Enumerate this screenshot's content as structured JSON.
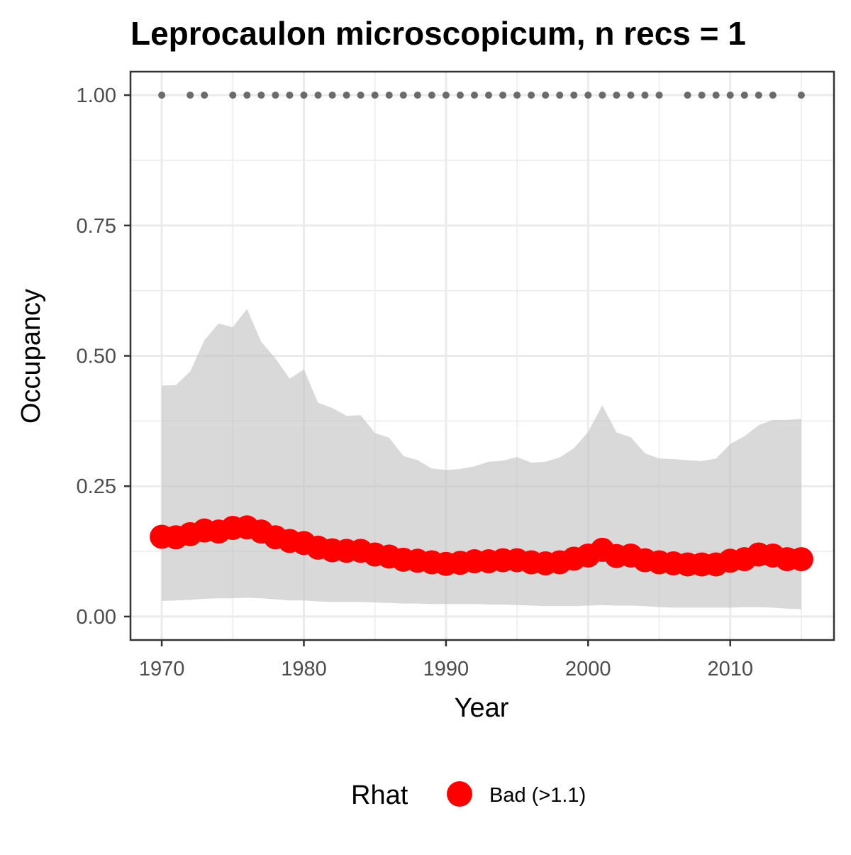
{
  "chart_data": {
    "type": "line",
    "title": "Leprocaulon microscopicum, n recs = 1",
    "xlabel": "Year",
    "ylabel": "Occupancy",
    "xlim": [
      1967.8,
      2017.3
    ],
    "ylim": [
      -0.045,
      1.045
    ],
    "x_ticks": [
      1970,
      1980,
      1990,
      2000,
      2010
    ],
    "x_tick_labels": [
      "1970",
      "1980",
      "1990",
      "2000",
      "2010"
    ],
    "y_ticks": [
      0,
      0.25,
      0.5,
      0.75,
      1.0
    ],
    "y_tick_labels": [
      "0.00",
      "0.25",
      "0.50",
      "0.75",
      "1.00"
    ],
    "grid": true,
    "legend": {
      "title": "Rhat",
      "position": "bottom",
      "entries": [
        {
          "label": "Bad (>1.1)",
          "color": "#ff0000"
        }
      ]
    },
    "colors": {
      "mean_points": "#ff0000",
      "ribbon": "#d6d6d6",
      "record_points": "#6b6b6b",
      "grid": "#ebebeb",
      "panel_border": "#333333"
    },
    "x": [
      1970,
      1971,
      1972,
      1973,
      1974,
      1975,
      1976,
      1977,
      1978,
      1979,
      1980,
      1981,
      1982,
      1983,
      1984,
      1985,
      1986,
      1987,
      1988,
      1989,
      1990,
      1991,
      1992,
      1993,
      1994,
      1995,
      1996,
      1997,
      1998,
      1999,
      2000,
      2001,
      2002,
      2003,
      2004,
      2005,
      2006,
      2007,
      2008,
      2009,
      2010,
      2011,
      2012,
      2013,
      2014,
      2015
    ],
    "series": [
      {
        "values": [
          0.153,
          0.152,
          0.158,
          0.165,
          0.163,
          0.17,
          0.171,
          0.163,
          0.152,
          0.145,
          0.141,
          0.132,
          0.127,
          0.126,
          0.126,
          0.119,
          0.115,
          0.109,
          0.107,
          0.104,
          0.101,
          0.103,
          0.106,
          0.106,
          0.108,
          0.108,
          0.104,
          0.102,
          0.104,
          0.111,
          0.117,
          0.128,
          0.116,
          0.117,
          0.108,
          0.104,
          0.102,
          0.1,
          0.1,
          0.1,
          0.107,
          0.11,
          0.119,
          0.117,
          0.11,
          0.11
        ]
      }
    ],
    "ribbon": {
      "upper": [
        0.443,
        0.444,
        0.47,
        0.53,
        0.562,
        0.555,
        0.59,
        0.527,
        0.495,
        0.456,
        0.474,
        0.41,
        0.4,
        0.385,
        0.386,
        0.352,
        0.343,
        0.308,
        0.3,
        0.284,
        0.281,
        0.283,
        0.288,
        0.297,
        0.299,
        0.306,
        0.295,
        0.297,
        0.305,
        0.323,
        0.354,
        0.405,
        0.353,
        0.344,
        0.313,
        0.303,
        0.302,
        0.3,
        0.298,
        0.303,
        0.331,
        0.346,
        0.367,
        0.377,
        0.377,
        0.379
      ],
      "lower": [
        0.03,
        0.031,
        0.032,
        0.034,
        0.035,
        0.035,
        0.036,
        0.035,
        0.033,
        0.031,
        0.031,
        0.029,
        0.028,
        0.028,
        0.028,
        0.027,
        0.026,
        0.025,
        0.025,
        0.024,
        0.024,
        0.024,
        0.024,
        0.023,
        0.023,
        0.022,
        0.021,
        0.02,
        0.02,
        0.02,
        0.021,
        0.022,
        0.021,
        0.021,
        0.02,
        0.018,
        0.017,
        0.017,
        0.017,
        0.017,
        0.017,
        0.018,
        0.018,
        0.017,
        0.015,
        0.014
      ]
    },
    "record_years": [
      1970,
      1972,
      1973,
      1975,
      1976,
      1977,
      1978,
      1979,
      1980,
      1981,
      1982,
      1983,
      1984,
      1985,
      1986,
      1987,
      1988,
      1989,
      1990,
      1991,
      1992,
      1993,
      1994,
      1995,
      1996,
      1997,
      1998,
      1999,
      2000,
      2001,
      2002,
      2003,
      2004,
      2005,
      2007,
      2008,
      2009,
      2010,
      2011,
      2012,
      2013,
      2015
    ],
    "record_value": 1.0
  }
}
